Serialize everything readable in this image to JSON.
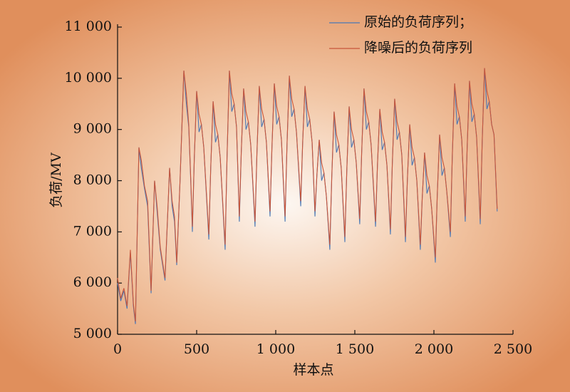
{
  "chart_data": {
    "type": "line",
    "xlabel": "样本点",
    "ylabel": "负荷/MV",
    "xlim": [
      0,
      2500
    ],
    "xticks": [
      0,
      500,
      {
        "value": 1000,
        "label": "1 000"
      },
      {
        "value": 1500,
        "label": "1 500"
      },
      {
        "value": 2000,
        "label": "2 000"
      },
      {
        "value": 2500,
        "label": "2 500"
      }
    ],
    "ylim": [
      5000,
      11000
    ],
    "yticks": [
      {
        "value": 5000,
        "label": "5 000"
      },
      {
        "value": 6000,
        "label": "6 000"
      },
      {
        "value": 7000,
        "label": "7 000"
      },
      {
        "value": 8000,
        "label": "8 000"
      },
      {
        "value": 9000,
        "label": "9 000"
      },
      {
        "value": 10000,
        "label": "10 000"
      },
      {
        "value": 11000,
        "label": "11 000"
      }
    ],
    "legend": "upper right",
    "x": [
      0,
      20,
      40,
      60,
      81,
      100,
      113,
      135,
      150,
      170,
      190,
      212,
      234,
      250,
      270,
      300,
      329,
      345,
      360,
      374,
      395,
      419,
      435,
      450,
      462,
      473,
      485,
      500,
      515,
      530,
      545,
      577,
      589,
      604,
      619,
      634,
      649,
      680,
      692,
      707,
      722,
      737,
      752,
      770,
      782,
      797,
      812,
      827,
      842,
      869,
      881,
      896,
      911,
      926,
      941,
      964,
      976,
      991,
      1006,
      1021,
      1036,
      1059,
      1071,
      1086,
      1101,
      1116,
      1131,
      1158,
      1170,
      1185,
      1200,
      1215,
      1230,
      1248,
      1260,
      1275,
      1290,
      1305,
      1320,
      1342,
      1354,
      1369,
      1384,
      1399,
      1414,
      1437,
      1449,
      1464,
      1479,
      1494,
      1509,
      1531,
      1543,
      1558,
      1573,
      1588,
      1603,
      1631,
      1643,
      1658,
      1673,
      1688,
      1703,
      1725,
      1737,
      1752,
      1767,
      1782,
      1797,
      1820,
      1832,
      1847,
      1862,
      1877,
      1892,
      1914,
      1926,
      1941,
      1956,
      1971,
      1986,
      2009,
      2021,
      2036,
      2051,
      2066,
      2081,
      2104,
      2116,
      2131,
      2146,
      2161,
      2176,
      2198,
      2210,
      2225,
      2240,
      2255,
      2270,
      2293,
      2305,
      2320,
      2335,
      2350,
      2365,
      2380,
      2400
    ],
    "series": [
      {
        "name": "原始的负荷序列；",
        "color": "#4a78b5",
        "values": [
          6000,
          5650,
          5850,
          5500,
          6600,
          5550,
          5200,
          8650,
          8250,
          7850,
          7500,
          5800,
          8000,
          7400,
          6650,
          6050,
          8250,
          7500,
          7200,
          6350,
          8000,
          10150,
          9500,
          9050,
          8050,
          7000,
          8425,
          9750,
          8950,
          9100,
          8650,
          6850,
          8250,
          9550,
          8750,
          8900,
          8450,
          6650,
          8450,
          10150,
          9350,
          9500,
          9050,
          7200,
          8550,
          9800,
          9000,
          9150,
          8700,
          7100,
          8525,
          9850,
          9050,
          9200,
          8750,
          7300,
          8650,
          9900,
          9100,
          9250,
          8800,
          7200,
          8675,
          10050,
          9250,
          9400,
          8950,
          7500,
          8725,
          9850,
          9050,
          9200,
          8750,
          7300,
          8100,
          8800,
          8000,
          8150,
          7700,
          6650,
          8050,
          9350,
          8550,
          8700,
          8250,
          6800,
          8175,
          9450,
          8650,
          8800,
          8350,
          7150,
          8525,
          9800,
          9000,
          9150,
          8700,
          7100,
          8300,
          9400,
          8600,
          8750,
          8300,
          6950,
          8325,
          9600,
          8800,
          8950,
          8500,
          6800,
          8000,
          9100,
          8300,
          8450,
          8000,
          6650,
          7650,
          8550,
          7750,
          7900,
          7450,
          6400,
          7700,
          8900,
          8100,
          8250,
          7800,
          6900,
          8450,
          9900,
          9100,
          9250,
          8800,
          7200,
          8625,
          9950,
          9150,
          9300,
          8850,
          7150,
          8725,
          10200,
          9400,
          9550,
          9100,
          8900,
          7400
        ]
      },
      {
        "name": "降噪后的负荷序列",
        "color": "#c8553a",
        "values": [
          6100,
          5700,
          5900,
          5550,
          6650,
          5600,
          5250,
          8650,
          8400,
          7900,
          7600,
          5850,
          8000,
          7500,
          6700,
          6100,
          8250,
          7600,
          7300,
          6400,
          8000,
          10150,
          9700,
          9100,
          8100,
          7100,
          8425,
          9750,
          9300,
          9100,
          8650,
          6950,
          8250,
          9550,
          9100,
          8900,
          8450,
          6750,
          8450,
          10150,
          9700,
          9500,
          9050,
          7300,
          8550,
          9800,
          9350,
          9150,
          8700,
          7200,
          8525,
          9850,
          9400,
          9200,
          8750,
          7400,
          8650,
          9900,
          9450,
          9250,
          8800,
          7300,
          8675,
          10050,
          9600,
          9400,
          8950,
          7600,
          8725,
          9850,
          9400,
          9200,
          8750,
          7400,
          8100,
          8800,
          8350,
          8150,
          7700,
          6750,
          8050,
          9350,
          8900,
          8700,
          8250,
          6900,
          8175,
          9450,
          9000,
          8800,
          8350,
          7250,
          8525,
          9800,
          9350,
          9150,
          8700,
          7200,
          8300,
          9400,
          8950,
          8750,
          8300,
          7050,
          8325,
          9600,
          9150,
          8950,
          8500,
          6900,
          8000,
          9100,
          8650,
          8450,
          8000,
          6750,
          7650,
          8550,
          8100,
          7900,
          7450,
          6500,
          7700,
          8900,
          8450,
          8250,
          7800,
          7000,
          8450,
          9900,
          9450,
          9250,
          8800,
          7300,
          8625,
          9950,
          9500,
          9300,
          8850,
          7250,
          8725,
          10200,
          9750,
          9550,
          9100,
          8900,
          7450
        ]
      }
    ]
  }
}
